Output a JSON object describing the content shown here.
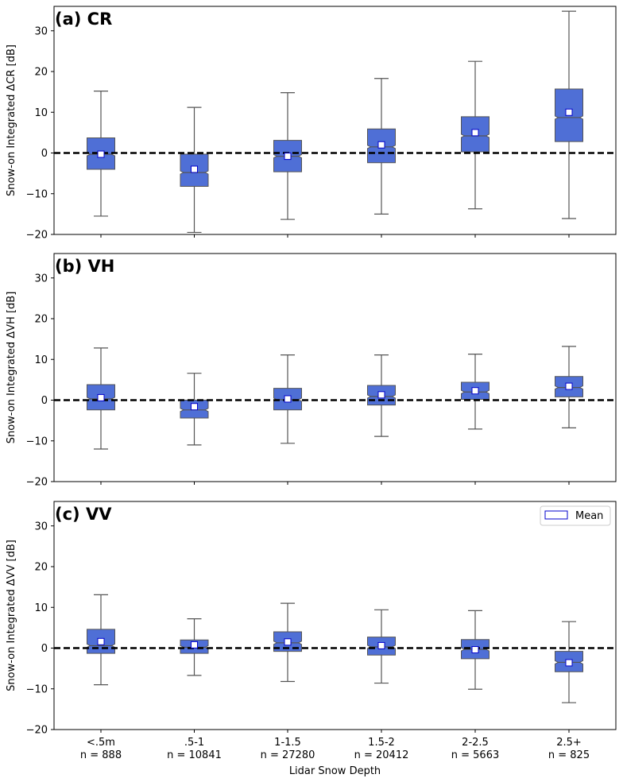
{
  "chart_data": [
    {
      "type": "boxplot",
      "title": "(a) CR",
      "ylabel": "Snow-on Integrated ΔCR [dB]",
      "ylim": [
        -20,
        36
      ],
      "yticks": [
        -20,
        -10,
        0,
        10,
        20,
        30
      ],
      "reference_line": 0,
      "categories": [
        "<.5m",
        ".5-1",
        "1-1.5",
        "1.5-2",
        "2-2.5",
        "2.5+"
      ],
      "boxes": [
        {
          "whisker_low": -15.5,
          "q1": -4.0,
          "median": -0.3,
          "q3": 3.7,
          "whisker_high": 15.2,
          "mean": -0.3
        },
        {
          "whisker_low": -19.5,
          "q1": -8.2,
          "median": -4.8,
          "q3": -0.3,
          "whisker_high": 11.2,
          "mean": -4.0
        },
        {
          "whisker_low": -16.3,
          "q1": -4.6,
          "median": -0.8,
          "q3": 3.1,
          "whisker_high": 14.8,
          "mean": -0.8
        },
        {
          "whisker_low": -15.0,
          "q1": -2.4,
          "median": 1.5,
          "q3": 5.9,
          "whisker_high": 18.3,
          "mean": 2.0
        },
        {
          "whisker_low": -13.7,
          "q1": 0.3,
          "median": 4.2,
          "q3": 8.9,
          "whisker_high": 22.5,
          "mean": 5.0
        },
        {
          "whisker_low": -16.1,
          "q1": 2.8,
          "median": 8.7,
          "q3": 15.7,
          "whisker_high": 34.8,
          "mean": 10.0
        }
      ]
    },
    {
      "type": "boxplot",
      "title": "(b) VH",
      "ylabel": "Snow-on Integrated ΔVH [dB]",
      "ylim": [
        -20,
        36
      ],
      "yticks": [
        -20,
        -10,
        0,
        10,
        20,
        30
      ],
      "reference_line": 0,
      "categories": [
        "<.5m",
        ".5-1",
        "1-1.5",
        "1.5-2",
        "2-2.5",
        "2.5+"
      ],
      "boxes": [
        {
          "whisker_low": -12.0,
          "q1": -2.4,
          "median": 0.3,
          "q3": 3.8,
          "whisker_high": 12.8,
          "mean": 0.6
        },
        {
          "whisker_low": -11.0,
          "q1": -4.4,
          "median": -2.4,
          "q3": 0.0,
          "whisker_high": 6.6,
          "mean": -1.6
        },
        {
          "whisker_low": -10.6,
          "q1": -2.4,
          "median": 0.1,
          "q3": 2.9,
          "whisker_high": 11.1,
          "mean": 0.3
        },
        {
          "whisker_low": -8.9,
          "q1": -1.2,
          "median": 0.9,
          "q3": 3.6,
          "whisker_high": 11.1,
          "mean": 1.3
        },
        {
          "whisker_low": -7.1,
          "q1": 0.2,
          "median": 2.0,
          "q3": 4.4,
          "whisker_high": 11.3,
          "mean": 2.3
        },
        {
          "whisker_low": -6.8,
          "q1": 0.8,
          "median": 3.1,
          "q3": 5.8,
          "whisker_high": 13.2,
          "mean": 3.4
        }
      ]
    },
    {
      "type": "boxplot",
      "title": "(c) VV",
      "ylabel": "Snow-on Integrated ΔVV [dB]",
      "ylim": [
        -20,
        36
      ],
      "yticks": [
        -20,
        -10,
        0,
        10,
        20,
        30
      ],
      "reference_line": 0,
      "categories": [
        "<.5m",
        ".5-1",
        "1-1.5",
        "1.5-2",
        "2-2.5",
        "2.5+"
      ],
      "legend": {
        "label": "Mean",
        "position": "top-right"
      },
      "boxes": [
        {
          "whisker_low": -9.0,
          "q1": -1.3,
          "median": 0.6,
          "q3": 4.6,
          "whisker_high": 13.1,
          "mean": 1.6
        },
        {
          "whisker_low": -6.7,
          "q1": -1.3,
          "median": 0.2,
          "q3": 2.0,
          "whisker_high": 7.2,
          "mean": 0.8
        },
        {
          "whisker_low": -8.2,
          "q1": -0.8,
          "median": 1.3,
          "q3": 4.0,
          "whisker_high": 11.0,
          "mean": 1.5
        },
        {
          "whisker_low": -8.6,
          "q1": -1.7,
          "median": 0.3,
          "q3": 2.7,
          "whisker_high": 9.4,
          "mean": 0.6
        },
        {
          "whisker_low": -10.1,
          "q1": -2.6,
          "median": -0.3,
          "q3": 2.1,
          "whisker_high": 9.2,
          "mean": -0.4
        },
        {
          "whisker_low": -13.4,
          "q1": -5.8,
          "median": -3.5,
          "q3": -0.8,
          "whisker_high": 6.5,
          "mean": -3.6
        }
      ]
    }
  ],
  "x_axis": {
    "label": "Lidar Snow Depth",
    "tick_labels": [
      "<.5m",
      ".5-1",
      "1-1.5",
      "1.5-2",
      "2-2.5",
      "2.5+"
    ],
    "counts": [
      "n = 888",
      "n = 10841",
      "n = 27280",
      "n = 20412",
      "n = 5663",
      "n = 825"
    ]
  },
  "colors": {
    "box_fill": "#4f6fd6",
    "box_edge": "#555555",
    "mean_marker_edge": "#0000cc",
    "reference_line": "#000000"
  }
}
